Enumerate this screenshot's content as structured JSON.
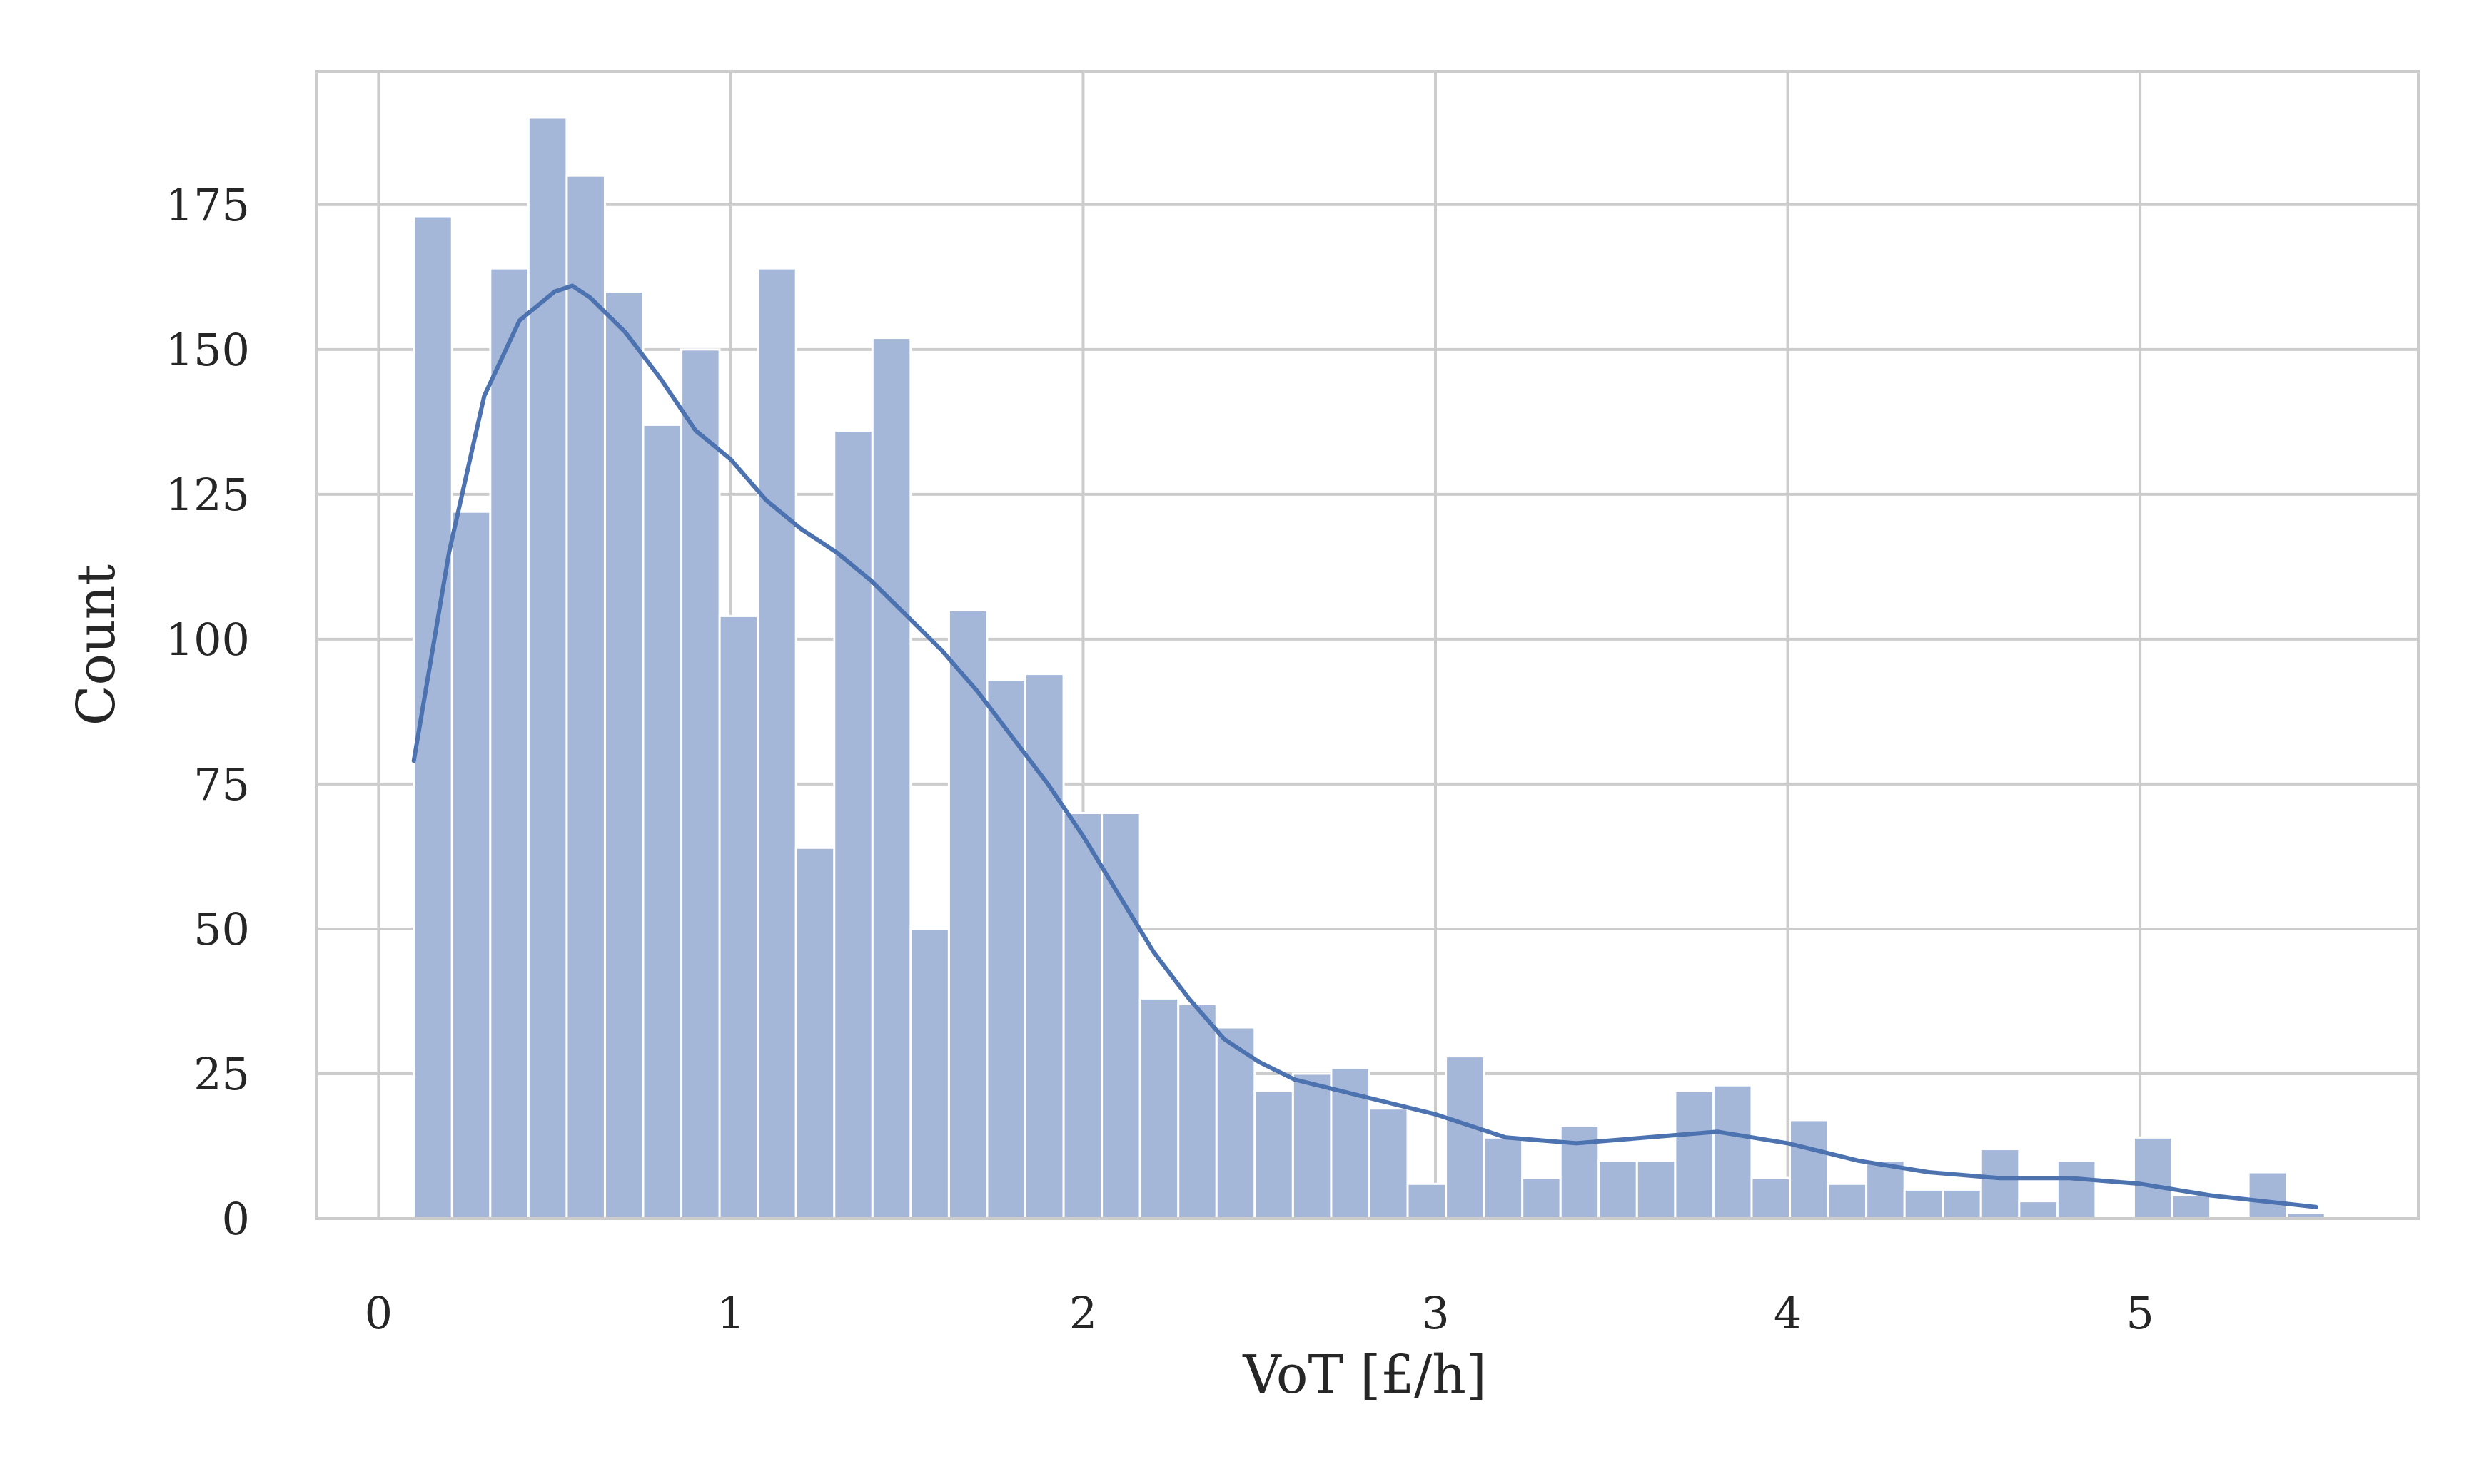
{
  "chart_data": {
    "type": "bar",
    "title": "",
    "xlabel": "VoT [£/h]",
    "ylabel": "Count",
    "xlim": [
      -0.175,
      5.79
    ],
    "ylim": [
      0,
      198
    ],
    "xticks": [
      0,
      1,
      2,
      3,
      4,
      5
    ],
    "yticks": [
      0,
      25,
      50,
      75,
      100,
      125,
      150,
      175
    ],
    "grid": true,
    "legend": "none",
    "bar_color": "#a5b7d8",
    "bar_edge_color": "#ffffff",
    "kde_color": "#4c72b0",
    "grid_color": "#cccccc",
    "bins": {
      "start": 0.1,
      "width": 0.1085,
      "counts": [
        173,
        122,
        164,
        190,
        180,
        160,
        137,
        150,
        104,
        164,
        64,
        136,
        152,
        50,
        105,
        93,
        94,
        70,
        70,
        38,
        37,
        33,
        22,
        25,
        26,
        19,
        6,
        28,
        14,
        7,
        16,
        10,
        10,
        22,
        23,
        7,
        17,
        6,
        10,
        5,
        5,
        12,
        3,
        10,
        0,
        14,
        4,
        0,
        8,
        1
      ]
    },
    "kde": {
      "x": [
        0.1,
        0.15,
        0.2,
        0.3,
        0.4,
        0.5,
        0.55,
        0.6,
        0.7,
        0.8,
        0.9,
        1.0,
        1.1,
        1.2,
        1.3,
        1.4,
        1.5,
        1.6,
        1.7,
        1.8,
        1.9,
        2.0,
        2.1,
        2.2,
        2.3,
        2.4,
        2.5,
        2.6,
        2.8,
        3.0,
        3.2,
        3.4,
        3.6,
        3.8,
        4.0,
        4.2,
        4.4,
        4.6,
        4.8,
        5.0,
        5.2,
        5.5
      ],
      "y": [
        79,
        97,
        115,
        142,
        155,
        160,
        161,
        159,
        153,
        145,
        136,
        131,
        124,
        119,
        115,
        110,
        104,
        98,
        91,
        83,
        75,
        66,
        56,
        46,
        38,
        31,
        27,
        24,
        21,
        18,
        14,
        13,
        14,
        15,
        13,
        10,
        8,
        7,
        7,
        6,
        4,
        2
      ]
    }
  }
}
